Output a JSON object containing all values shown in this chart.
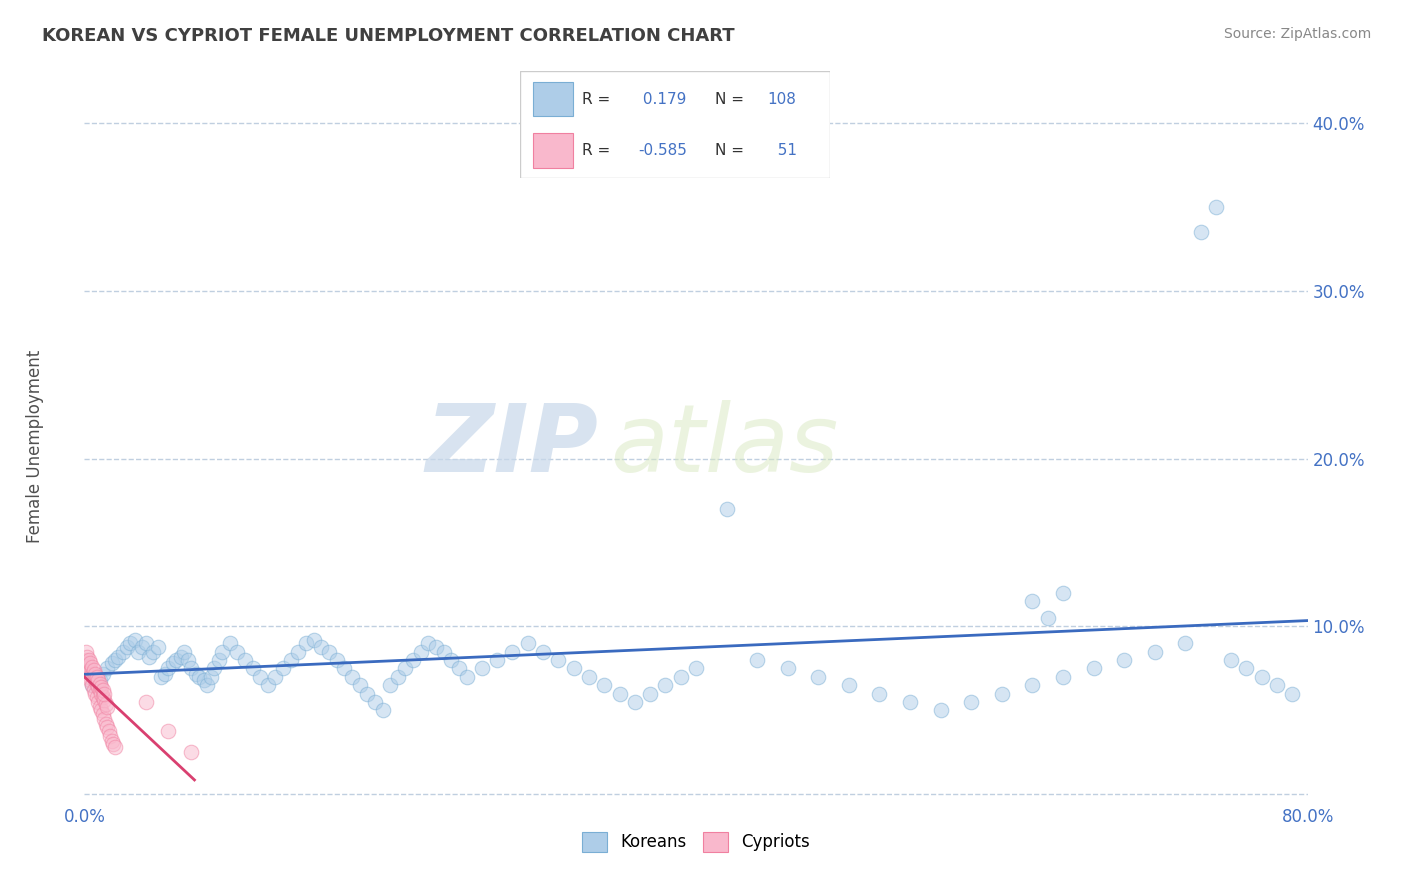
{
  "title": "KOREAN VS CYPRIOT FEMALE UNEMPLOYMENT CORRELATION CHART",
  "source": "Source: ZipAtlas.com",
  "ylabel": "Female Unemployment",
  "xlim": [
    0.0,
    0.8
  ],
  "ylim": [
    -0.005,
    0.42
  ],
  "xticks": [
    0.0,
    0.1,
    0.2,
    0.3,
    0.4,
    0.5,
    0.6,
    0.7,
    0.8
  ],
  "xticklabels": [
    "0.0%",
    "",
    "",
    "",
    "",
    "",
    "",
    "",
    "80.0%"
  ],
  "yticks": [
    0.0,
    0.1,
    0.2,
    0.3,
    0.4
  ],
  "yticklabels_right": [
    "",
    "10.0%",
    "20.0%",
    "30.0%",
    "40.0%"
  ],
  "korean_color": "#aecde8",
  "cypriot_color": "#f9b8cc",
  "korean_edge": "#7aaed4",
  "cypriot_edge": "#f080a0",
  "korean_line_color": "#3a6abf",
  "cypriot_line_color": "#d94070",
  "R_korean": 0.179,
  "N_korean": 108,
  "R_cypriot": -0.585,
  "N_cypriot": 51,
  "legend_label_korean": "Koreans",
  "legend_label_cypriot": "Cypriots",
  "watermark_zip": "ZIP",
  "watermark_atlas": "atlas",
  "background_color": "#ffffff",
  "grid_color": "#c0cfe0",
  "title_color": "#404040",
  "tick_color": "#4472c4",
  "marker_size": 110,
  "marker_alpha": 0.5,
  "line_width": 2.0,
  "korean_x": [
    0.005,
    0.008,
    0.01,
    0.012,
    0.015,
    0.018,
    0.02,
    0.022,
    0.025,
    0.028,
    0.03,
    0.033,
    0.035,
    0.038,
    0.04,
    0.042,
    0.045,
    0.048,
    0.05,
    0.053,
    0.055,
    0.058,
    0.06,
    0.063,
    0.065,
    0.068,
    0.07,
    0.073,
    0.075,
    0.078,
    0.08,
    0.083,
    0.085,
    0.088,
    0.09,
    0.095,
    0.1,
    0.105,
    0.11,
    0.115,
    0.12,
    0.125,
    0.13,
    0.135,
    0.14,
    0.145,
    0.15,
    0.155,
    0.16,
    0.165,
    0.17,
    0.175,
    0.18,
    0.185,
    0.19,
    0.195,
    0.2,
    0.205,
    0.21,
    0.215,
    0.22,
    0.225,
    0.23,
    0.235,
    0.24,
    0.245,
    0.25,
    0.26,
    0.27,
    0.28,
    0.29,
    0.3,
    0.31,
    0.32,
    0.33,
    0.34,
    0.35,
    0.36,
    0.37,
    0.38,
    0.39,
    0.4,
    0.42,
    0.44,
    0.46,
    0.48,
    0.5,
    0.52,
    0.54,
    0.56,
    0.58,
    0.6,
    0.62,
    0.64,
    0.66,
    0.68,
    0.7,
    0.72,
    0.73,
    0.74,
    0.75,
    0.76,
    0.77,
    0.78,
    0.79,
    0.62,
    0.63,
    0.64
  ],
  "korean_y": [
    0.065,
    0.07,
    0.068,
    0.072,
    0.075,
    0.078,
    0.08,
    0.082,
    0.085,
    0.088,
    0.09,
    0.092,
    0.085,
    0.088,
    0.09,
    0.082,
    0.085,
    0.088,
    0.07,
    0.072,
    0.075,
    0.078,
    0.08,
    0.082,
    0.085,
    0.08,
    0.075,
    0.072,
    0.07,
    0.068,
    0.065,
    0.07,
    0.075,
    0.08,
    0.085,
    0.09,
    0.085,
    0.08,
    0.075,
    0.07,
    0.065,
    0.07,
    0.075,
    0.08,
    0.085,
    0.09,
    0.092,
    0.088,
    0.085,
    0.08,
    0.075,
    0.07,
    0.065,
    0.06,
    0.055,
    0.05,
    0.065,
    0.07,
    0.075,
    0.08,
    0.085,
    0.09,
    0.088,
    0.085,
    0.08,
    0.075,
    0.07,
    0.075,
    0.08,
    0.085,
    0.09,
    0.085,
    0.08,
    0.075,
    0.07,
    0.065,
    0.06,
    0.055,
    0.06,
    0.065,
    0.07,
    0.075,
    0.17,
    0.08,
    0.075,
    0.07,
    0.065,
    0.06,
    0.055,
    0.05,
    0.055,
    0.06,
    0.065,
    0.07,
    0.075,
    0.08,
    0.085,
    0.09,
    0.335,
    0.35,
    0.08,
    0.075,
    0.07,
    0.065,
    0.06,
    0.115,
    0.105,
    0.12
  ],
  "cypriot_x": [
    0.001,
    0.002,
    0.003,
    0.004,
    0.005,
    0.006,
    0.007,
    0.008,
    0.009,
    0.01,
    0.011,
    0.012,
    0.013,
    0.014,
    0.015,
    0.016,
    0.017,
    0.018,
    0.019,
    0.02,
    0.001,
    0.002,
    0.003,
    0.004,
    0.005,
    0.006,
    0.007,
    0.008,
    0.009,
    0.01,
    0.011,
    0.012,
    0.013,
    0.014,
    0.015,
    0.001,
    0.002,
    0.003,
    0.004,
    0.005,
    0.006,
    0.007,
    0.008,
    0.009,
    0.01,
    0.011,
    0.012,
    0.013,
    0.04,
    0.055,
    0.07
  ],
  "cypriot_y": [
    0.075,
    0.072,
    0.07,
    0.068,
    0.065,
    0.062,
    0.06,
    0.058,
    0.055,
    0.052,
    0.05,
    0.048,
    0.045,
    0.042,
    0.04,
    0.038,
    0.035,
    0.032,
    0.03,
    0.028,
    0.08,
    0.078,
    0.076,
    0.074,
    0.072,
    0.07,
    0.068,
    0.066,
    0.064,
    0.062,
    0.06,
    0.058,
    0.056,
    0.054,
    0.052,
    0.085,
    0.082,
    0.08,
    0.078,
    0.076,
    0.074,
    0.072,
    0.07,
    0.068,
    0.066,
    0.064,
    0.062,
    0.06,
    0.055,
    0.038,
    0.025
  ]
}
